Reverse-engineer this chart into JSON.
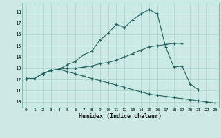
{
  "line1_x": [
    0,
    1,
    2,
    3,
    4,
    5,
    6,
    7,
    8,
    9,
    10,
    11,
    12,
    13,
    14,
    15,
    16,
    17,
    18,
    19,
    20,
    21
  ],
  "line1_y": [
    12.1,
    12.1,
    12.5,
    12.8,
    12.9,
    13.3,
    13.6,
    14.2,
    14.5,
    15.5,
    16.1,
    16.9,
    16.6,
    17.3,
    17.8,
    18.2,
    17.8,
    14.9,
    13.1,
    13.2,
    11.6,
    11.1
  ],
  "line2_x": [
    0,
    1,
    2,
    3,
    4,
    5,
    6,
    7,
    8,
    9,
    10,
    11,
    12,
    13,
    14,
    15,
    16,
    17,
    18,
    19
  ],
  "line2_y": [
    12.1,
    12.1,
    12.5,
    12.8,
    12.9,
    13.0,
    13.0,
    13.1,
    13.2,
    13.4,
    13.5,
    13.7,
    14.0,
    14.3,
    14.6,
    14.9,
    15.0,
    15.1,
    15.2,
    15.2
  ],
  "line3_x": [
    0,
    1,
    2,
    3,
    4,
    5,
    6,
    7,
    8,
    9,
    10,
    11,
    12,
    13,
    14,
    15,
    16,
    17,
    18,
    19,
    20,
    21,
    22,
    23
  ],
  "line3_y": [
    12.1,
    12.1,
    12.5,
    12.8,
    12.9,
    12.7,
    12.5,
    12.3,
    12.1,
    11.9,
    11.7,
    11.5,
    11.3,
    11.1,
    10.9,
    10.7,
    10.6,
    10.5,
    10.4,
    10.3,
    10.2,
    10.1,
    10.0,
    9.9
  ],
  "color": "#206060",
  "bg_color": "#cce9e5",
  "grid_color": "#aad4ce",
  "ylim": [
    9.5,
    18.8
  ],
  "xlim": [
    -0.5,
    23.5
  ],
  "xlabel": "Humidex (Indice chaleur)",
  "yticks": [
    10,
    11,
    12,
    13,
    14,
    15,
    16,
    17,
    18
  ],
  "xticks": [
    0,
    1,
    2,
    3,
    4,
    5,
    6,
    7,
    8,
    9,
    10,
    11,
    12,
    13,
    14,
    15,
    16,
    17,
    18,
    19,
    20,
    21,
    22,
    23
  ]
}
